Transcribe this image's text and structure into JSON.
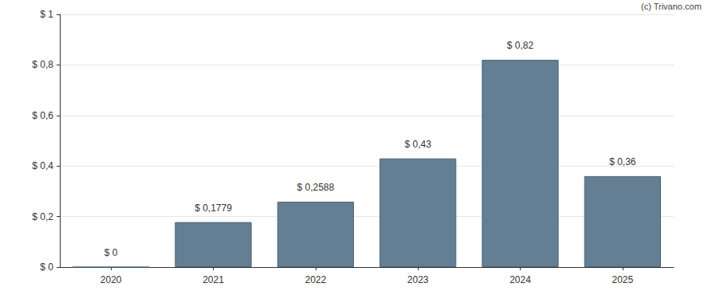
{
  "chart_data": {
    "type": "bar",
    "annotations": [
      "(c) Trivano.com"
    ],
    "categories": [
      "2020",
      "2021",
      "2022",
      "2023",
      "2024",
      "2025"
    ],
    "values": [
      0,
      0.1779,
      0.2588,
      0.43,
      0.82,
      0.36
    ],
    "value_labels": [
      "$ 0",
      "$ 0,1779",
      "$ 0,2588",
      "$ 0,43",
      "$ 0,82",
      "$ 0,36"
    ],
    "data_labels": true,
    "color": "#647f93",
    "ylim": [
      0,
      1
    ],
    "yticks": [
      {
        "value": 0,
        "label": "$ 0"
      },
      {
        "value": 0.2,
        "label": "$ 0,2"
      },
      {
        "value": 0.4,
        "label": "$ 0,4"
      },
      {
        "value": 0.6,
        "label": "$ 0,6"
      },
      {
        "value": 0.8,
        "label": "$ 0,8"
      },
      {
        "value": 1,
        "label": "$ 1"
      }
    ],
    "grid": true
  }
}
